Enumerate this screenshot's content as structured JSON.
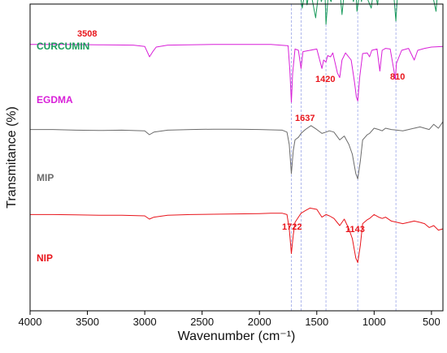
{
  "chart_data": {
    "type": "line",
    "xlabel": "Wavenumber (cm⁻¹)",
    "ylabel": "Transmitance (%)",
    "xlim": [
      4000,
      400
    ],
    "x_reversed": true,
    "y_ticks_shown": false,
    "x_ticks": [
      4000,
      3500,
      3000,
      2500,
      2000,
      1500,
      1000,
      500
    ],
    "reference_lines": [
      1722,
      1637,
      1420,
      1143,
      810
    ],
    "series": [
      {
        "name": "CURCUMIN",
        "color": "#1a9b5c",
        "offset": 4.1,
        "points": [
          [
            4000,
            0.97
          ],
          [
            3800,
            0.965
          ],
          [
            3600,
            0.955
          ],
          [
            3540,
            0.95
          ],
          [
            3508,
            0.8
          ],
          [
            3480,
            0.93
          ],
          [
            3400,
            0.95
          ],
          [
            3200,
            0.96
          ],
          [
            3000,
            0.955
          ],
          [
            2950,
            0.93
          ],
          [
            2900,
            0.95
          ],
          [
            2700,
            0.96
          ],
          [
            2500,
            0.962
          ],
          [
            2300,
            0.965
          ],
          [
            2000,
            0.97
          ],
          [
            1800,
            0.965
          ],
          [
            1700,
            0.96
          ],
          [
            1660,
            0.8
          ],
          [
            1627,
            0.4
          ],
          [
            1600,
            0.7
          ],
          [
            1585,
            0.45
          ],
          [
            1560,
            0.72
          ],
          [
            1510,
            0.25
          ],
          [
            1480,
            0.7
          ],
          [
            1460,
            0.5
          ],
          [
            1430,
            0.7
          ],
          [
            1420,
            0.15
          ],
          [
            1400,
            0.6
          ],
          [
            1375,
            0.5
          ],
          [
            1350,
            0.75
          ],
          [
            1320,
            0.55
          ],
          [
            1300,
            0.7
          ],
          [
            1280,
            0.3
          ],
          [
            1260,
            0.65
          ],
          [
            1230,
            0.55
          ],
          [
            1205,
            0.7
          ],
          [
            1180,
            0.5
          ],
          [
            1160,
            0.7
          ],
          [
            1150,
            0.35
          ],
          [
            1125,
            0.65
          ],
          [
            1110,
            0.5
          ],
          [
            1090,
            0.8
          ],
          [
            1060,
            0.55
          ],
          [
            1025,
            0.4
          ],
          [
            1000,
            0.75
          ],
          [
            970,
            0.45
          ],
          [
            950,
            0.8
          ],
          [
            920,
            0.7
          ],
          [
            885,
            0.9
          ],
          [
            860,
            0.55
          ],
          [
            840,
            0.85
          ],
          [
            810,
            0.2
          ],
          [
            790,
            0.8
          ],
          [
            760,
            0.75
          ],
          [
            720,
            0.9
          ],
          [
            700,
            0.65
          ],
          [
            680,
            0.85
          ],
          [
            650,
            0.75
          ],
          [
            620,
            0.9
          ],
          [
            600,
            0.7
          ],
          [
            575,
            0.9
          ],
          [
            545,
            0.75
          ],
          [
            520,
            0.85
          ],
          [
            490,
            0.6
          ],
          [
            460,
            0.35
          ],
          [
            440,
            0.8
          ],
          [
            420,
            0.9
          ],
          [
            400,
            0.95
          ]
        ]
      },
      {
        "name": "EGDMA",
        "color": "#d81fd8",
        "offset": 2.95,
        "points": [
          [
            4000,
            0.99
          ],
          [
            3700,
            0.99
          ],
          [
            3400,
            0.985
          ],
          [
            3100,
            0.98
          ],
          [
            3000,
            0.96
          ],
          [
            2958,
            0.8
          ],
          [
            2930,
            0.88
          ],
          [
            2900,
            0.95
          ],
          [
            2800,
            0.98
          ],
          [
            2400,
            0.99
          ],
          [
            2100,
            0.99
          ],
          [
            1900,
            0.99
          ],
          [
            1750,
            0.97
          ],
          [
            1735,
            0.6
          ],
          [
            1722,
            0.1
          ],
          [
            1710,
            0.55
          ],
          [
            1690,
            0.92
          ],
          [
            1660,
            0.9
          ],
          [
            1637,
            0.62
          ],
          [
            1620,
            0.88
          ],
          [
            1500,
            0.92
          ],
          [
            1455,
            0.62
          ],
          [
            1440,
            0.75
          ],
          [
            1420,
            0.72
          ],
          [
            1405,
            0.82
          ],
          [
            1380,
            0.8
          ],
          [
            1360,
            0.86
          ],
          [
            1320,
            0.55
          ],
          [
            1300,
            0.48
          ],
          [
            1280,
            0.75
          ],
          [
            1250,
            0.86
          ],
          [
            1200,
            0.75
          ],
          [
            1170,
            0.4
          ],
          [
            1155,
            0.18
          ],
          [
            1143,
            0.12
          ],
          [
            1125,
            0.5
          ],
          [
            1100,
            0.85
          ],
          [
            1060,
            0.86
          ],
          [
            1040,
            0.8
          ],
          [
            1020,
            0.9
          ],
          [
            975,
            0.92
          ],
          [
            950,
            0.58
          ],
          [
            930,
            0.9
          ],
          [
            900,
            0.93
          ],
          [
            860,
            0.92
          ],
          [
            830,
            0.62
          ],
          [
            815,
            0.45
          ],
          [
            805,
            0.7
          ],
          [
            760,
            0.9
          ],
          [
            700,
            0.93
          ],
          [
            650,
            0.75
          ],
          [
            620,
            0.9
          ],
          [
            560,
            0.93
          ],
          [
            500,
            0.95
          ],
          [
            400,
            0.96
          ]
        ]
      },
      {
        "name": "MIP",
        "color": "#6b6b6b",
        "offset": 1.85,
        "points": [
          [
            4000,
            0.78
          ],
          [
            3800,
            0.78
          ],
          [
            3600,
            0.77
          ],
          [
            3400,
            0.765
          ],
          [
            3200,
            0.77
          ],
          [
            3000,
            0.76
          ],
          [
            2960,
            0.7
          ],
          [
            2920,
            0.74
          ],
          [
            2800,
            0.77
          ],
          [
            2600,
            0.78
          ],
          [
            2400,
            0.785
          ],
          [
            2200,
            0.785
          ],
          [
            2000,
            0.78
          ],
          [
            1900,
            0.775
          ],
          [
            1800,
            0.77
          ],
          [
            1760,
            0.74
          ],
          [
            1740,
            0.55
          ],
          [
            1722,
            0.1
          ],
          [
            1705,
            0.45
          ],
          [
            1690,
            0.62
          ],
          [
            1660,
            0.66
          ],
          [
            1637,
            0.72
          ],
          [
            1600,
            0.78
          ],
          [
            1550,
            0.84
          ],
          [
            1500,
            0.78
          ],
          [
            1455,
            0.72
          ],
          [
            1420,
            0.74
          ],
          [
            1390,
            0.76
          ],
          [
            1350,
            0.74
          ],
          [
            1300,
            0.62
          ],
          [
            1260,
            0.68
          ],
          [
            1220,
            0.55
          ],
          [
            1190,
            0.4
          ],
          [
            1160,
            0.1
          ],
          [
            1143,
            0.02
          ],
          [
            1120,
            0.3
          ],
          [
            1100,
            0.62
          ],
          [
            1060,
            0.7
          ],
          [
            1040,
            0.72
          ],
          [
            1000,
            0.8
          ],
          [
            960,
            0.78
          ],
          [
            930,
            0.76
          ],
          [
            900,
            0.8
          ],
          [
            850,
            0.78
          ],
          [
            800,
            0.77
          ],
          [
            750,
            0.76
          ],
          [
            700,
            0.78
          ],
          [
            650,
            0.8
          ],
          [
            600,
            0.82
          ],
          [
            560,
            0.8
          ],
          [
            520,
            0.78
          ],
          [
            480,
            0.86
          ],
          [
            440,
            0.8
          ],
          [
            400,
            0.9
          ]
        ]
      },
      {
        "name": "NIP",
        "color": "#e8141b",
        "offset": 0.6,
        "points": [
          [
            4000,
            0.72
          ],
          [
            3800,
            0.72
          ],
          [
            3600,
            0.715
          ],
          [
            3400,
            0.71
          ],
          [
            3200,
            0.71
          ],
          [
            3000,
            0.7
          ],
          [
            2960,
            0.65
          ],
          [
            2920,
            0.68
          ],
          [
            2800,
            0.71
          ],
          [
            2600,
            0.72
          ],
          [
            2400,
            0.725
          ],
          [
            2200,
            0.73
          ],
          [
            2000,
            0.735
          ],
          [
            1900,
            0.74
          ],
          [
            1800,
            0.74
          ],
          [
            1760,
            0.72
          ],
          [
            1740,
            0.5
          ],
          [
            1722,
            0.12
          ],
          [
            1705,
            0.4
          ],
          [
            1690,
            0.6
          ],
          [
            1660,
            0.68
          ],
          [
            1637,
            0.74
          ],
          [
            1600,
            0.78
          ],
          [
            1560,
            0.82
          ],
          [
            1500,
            0.8
          ],
          [
            1455,
            0.68
          ],
          [
            1420,
            0.72
          ],
          [
            1390,
            0.7
          ],
          [
            1350,
            0.66
          ],
          [
            1300,
            0.55
          ],
          [
            1260,
            0.65
          ],
          [
            1220,
            0.5
          ],
          [
            1190,
            0.35
          ],
          [
            1160,
            0.05
          ],
          [
            1143,
            -0.02
          ],
          [
            1120,
            0.25
          ],
          [
            1100,
            0.58
          ],
          [
            1060,
            0.64
          ],
          [
            1040,
            0.66
          ],
          [
            1000,
            0.72
          ],
          [
            960,
            0.68
          ],
          [
            930,
            0.66
          ],
          [
            900,
            0.68
          ],
          [
            850,
            0.62
          ],
          [
            800,
            0.6
          ],
          [
            750,
            0.58
          ],
          [
            700,
            0.6
          ],
          [
            650,
            0.62
          ],
          [
            600,
            0.6
          ],
          [
            560,
            0.58
          ],
          [
            520,
            0.52
          ],
          [
            480,
            0.55
          ],
          [
            440,
            0.48
          ],
          [
            400,
            0.5
          ]
        ]
      }
    ],
    "annotations": [
      "3508",
      "1420",
      "810",
      "1637",
      "1722",
      "1143"
    ]
  }
}
